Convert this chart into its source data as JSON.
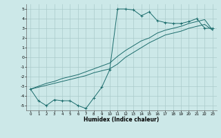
{
  "xlabel": "Humidex (Indice chaleur)",
  "xlim": [
    -0.5,
    23.5
  ],
  "ylim": [
    -5.5,
    5.5
  ],
  "yticks": [
    -5,
    -4,
    -3,
    -2,
    -1,
    0,
    1,
    2,
    3,
    4,
    5
  ],
  "xticks": [
    0,
    1,
    2,
    3,
    4,
    5,
    6,
    7,
    8,
    9,
    10,
    11,
    12,
    13,
    14,
    15,
    16,
    17,
    18,
    19,
    20,
    21,
    22,
    23
  ],
  "bg_color": "#cce8e8",
  "grid_color": "#aacaca",
  "line_color": "#1a6b6b",
  "line1_x": [
    0,
    1,
    2,
    3,
    4,
    5,
    6,
    7,
    8,
    9,
    10,
    11,
    12,
    13,
    14,
    15,
    16,
    17,
    18,
    19,
    20,
    21,
    22,
    23
  ],
  "line1_y": [
    -3.3,
    -4.5,
    -5.0,
    -4.4,
    -4.5,
    -4.5,
    -5.0,
    -5.3,
    -4.2,
    -3.1,
    -1.3,
    5.0,
    5.0,
    4.9,
    4.3,
    4.7,
    3.8,
    3.6,
    3.5,
    3.5,
    3.7,
    4.0,
    3.0,
    3.0
  ],
  "line2_x": [
    0,
    1,
    2,
    3,
    4,
    5,
    6,
    7,
    8,
    9,
    10,
    11,
    12,
    13,
    14,
    15,
    16,
    17,
    18,
    19,
    20,
    21,
    22,
    23
  ],
  "line2_y": [
    -3.3,
    -3.1,
    -2.9,
    -2.7,
    -2.5,
    -2.3,
    -2.1,
    -1.9,
    -1.6,
    -1.4,
    -1.2,
    -0.7,
    0.0,
    0.5,
    1.0,
    1.5,
    1.9,
    2.3,
    2.5,
    2.7,
    3.0,
    3.2,
    3.4,
    2.8
  ],
  "line3_x": [
    0,
    1,
    2,
    3,
    4,
    5,
    6,
    7,
    8,
    9,
    10,
    11,
    12,
    13,
    14,
    15,
    16,
    17,
    18,
    19,
    20,
    21,
    22,
    23
  ],
  "line3_y": [
    -3.3,
    -3.0,
    -2.7,
    -2.5,
    -2.2,
    -2.0,
    -1.8,
    -1.5,
    -1.2,
    -0.9,
    -0.6,
    0.1,
    0.7,
    1.2,
    1.7,
    2.0,
    2.5,
    2.8,
    3.0,
    3.2,
    3.5,
    3.7,
    3.9,
    2.8
  ]
}
